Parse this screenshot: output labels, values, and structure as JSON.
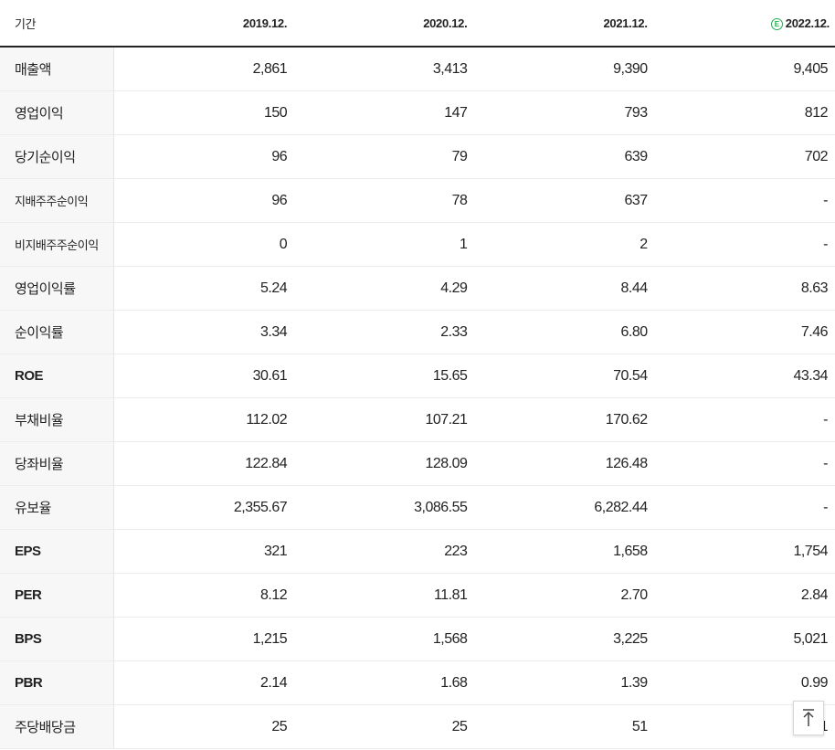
{
  "header": {
    "label": "기간",
    "periods": [
      "2019.12.",
      "2020.12.",
      "2021.12.",
      "2022.12."
    ],
    "estimate_badge": "E"
  },
  "rows": [
    {
      "label": "매출액",
      "values": [
        "2,861",
        "3,413",
        "9,390",
        "9,405"
      ]
    },
    {
      "label": "영업이익",
      "values": [
        "150",
        "147",
        "793",
        "812"
      ]
    },
    {
      "label": "당기순이익",
      "values": [
        "96",
        "79",
        "639",
        "702"
      ]
    },
    {
      "label": "지배주주순이익",
      "values": [
        "96",
        "78",
        "637",
        "-"
      ]
    },
    {
      "label": "비지배주주순이익",
      "values": [
        "0",
        "1",
        "2",
        "-"
      ]
    },
    {
      "label": "영업이익률",
      "values": [
        "5.24",
        "4.29",
        "8.44",
        "8.63"
      ]
    },
    {
      "label": "순이익률",
      "values": [
        "3.34",
        "2.33",
        "6.80",
        "7.46"
      ]
    },
    {
      "label": "ROE",
      "values": [
        "30.61",
        "15.65",
        "70.54",
        "43.34"
      ]
    },
    {
      "label": "부채비율",
      "values": [
        "112.02",
        "107.21",
        "170.62",
        "-"
      ]
    },
    {
      "label": "당좌비율",
      "values": [
        "122.84",
        "128.09",
        "126.48",
        "-"
      ]
    },
    {
      "label": "유보율",
      "values": [
        "2,355.67",
        "3,086.55",
        "6,282.44",
        "-"
      ]
    },
    {
      "label": "EPS",
      "values": [
        "321",
        "223",
        "1,658",
        "1,754"
      ]
    },
    {
      "label": "PER",
      "values": [
        "8.12",
        "11.81",
        "2.70",
        "2.84"
      ]
    },
    {
      "label": "BPS",
      "values": [
        "1,215",
        "1,568",
        "3,225",
        "5,021"
      ]
    },
    {
      "label": "PBR",
      "values": [
        "2.14",
        "1.68",
        "1.39",
        "0.99"
      ]
    },
    {
      "label": "주당배당금",
      "values": [
        "25",
        "25",
        "51",
        "1"
      ]
    }
  ],
  "scroll_top_icon": "arrow-up-to-top-icon"
}
